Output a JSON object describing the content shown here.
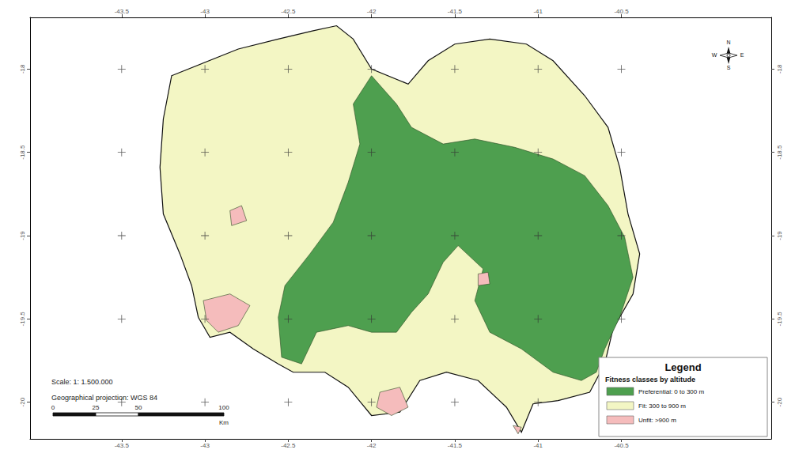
{
  "chart_data": {
    "type": "map",
    "xlim": [
      -44.05,
      -39.6
    ],
    "ylim": [
      -20.22,
      -17.69
    ],
    "xticks": [
      -43.5,
      -43,
      -42.5,
      -42,
      -41.5,
      -41,
      -40.5
    ],
    "yticks": [
      -20,
      -19.5,
      -19,
      -18.5,
      -18
    ],
    "grid": true,
    "legend": "lower right",
    "legend_title": "Legend",
    "legend_subtitle": "Fitness classes by altitude",
    "scale_text": "Scale: 1: 1.500.000",
    "projection_text": "Geographical projection: WGS 84",
    "scale_bar": {
      "ticks": [
        0,
        25,
        50,
        100
      ],
      "unit": "Km"
    },
    "compass": {
      "north": "N",
      "south": "S",
      "east": "E",
      "west": "W"
    },
    "series": [
      {
        "name": "Preferential: 0 to 300 m",
        "color": "#4e9f4f",
        "polygons": [
          [
            [
              -42.0,
              -18.04
            ],
            [
              -41.85,
              -18.21
            ],
            [
              -41.76,
              -18.35
            ],
            [
              -41.57,
              -18.45
            ],
            [
              -41.38,
              -18.42
            ],
            [
              -41.14,
              -18.47
            ],
            [
              -40.91,
              -18.54
            ],
            [
              -40.72,
              -18.64
            ],
            [
              -40.58,
              -18.82
            ],
            [
              -40.48,
              -19.01
            ],
            [
              -40.43,
              -19.25
            ],
            [
              -40.51,
              -19.49
            ],
            [
              -40.6,
              -19.68
            ],
            [
              -40.65,
              -19.82
            ],
            [
              -40.74,
              -19.87
            ],
            [
              -40.91,
              -19.82
            ],
            [
              -41.1,
              -19.68
            ],
            [
              -41.29,
              -19.58
            ],
            [
              -41.38,
              -19.39
            ],
            [
              -41.33,
              -19.2
            ],
            [
              -41.48,
              -19.06
            ],
            [
              -41.57,
              -19.16
            ],
            [
              -41.66,
              -19.35
            ],
            [
              -41.76,
              -19.46
            ],
            [
              -41.85,
              -19.58
            ],
            [
              -42.0,
              -19.58
            ],
            [
              -42.14,
              -19.54
            ],
            [
              -42.33,
              -19.58
            ],
            [
              -42.42,
              -19.77
            ],
            [
              -42.54,
              -19.73
            ],
            [
              -42.56,
              -19.49
            ],
            [
              -42.52,
              -19.3
            ],
            [
              -42.37,
              -19.11
            ],
            [
              -42.23,
              -18.92
            ],
            [
              -42.14,
              -18.68
            ],
            [
              -42.07,
              -18.45
            ],
            [
              -42.11,
              -18.21
            ]
          ]
        ]
      },
      {
        "name": "Fit: 300 to 900 m",
        "color": "#f3f6c4",
        "polygons": [
          [
            [
              -43.2,
              -18.04
            ],
            [
              -42.8,
              -17.88
            ],
            [
              -42.56,
              -17.82
            ],
            [
              -42.35,
              -17.77
            ],
            [
              -42.21,
              -17.74
            ],
            [
              -42.11,
              -17.82
            ],
            [
              -42.0,
              -18.0
            ],
            [
              -41.78,
              -18.09
            ],
            [
              -41.66,
              -17.95
            ],
            [
              -41.5,
              -17.85
            ],
            [
              -41.29,
              -17.82
            ],
            [
              -41.07,
              -17.85
            ],
            [
              -40.91,
              -17.95
            ],
            [
              -40.72,
              -18.16
            ],
            [
              -40.58,
              -18.35
            ],
            [
              -40.51,
              -18.59
            ],
            [
              -40.46,
              -18.87
            ],
            [
              -40.39,
              -19.11
            ],
            [
              -40.43,
              -19.35
            ],
            [
              -40.55,
              -19.56
            ],
            [
              -40.6,
              -19.77
            ],
            [
              -40.69,
              -19.94
            ],
            [
              -40.88,
              -19.99
            ],
            [
              -41.03,
              -20.01
            ],
            [
              -41.1,
              -20.18
            ],
            [
              -41.19,
              -20.03
            ],
            [
              -41.36,
              -19.87
            ],
            [
              -41.55,
              -19.82
            ],
            [
              -41.71,
              -19.87
            ],
            [
              -41.83,
              -20.06
            ],
            [
              -42.0,
              -20.08
            ],
            [
              -42.14,
              -19.91
            ],
            [
              -42.28,
              -19.82
            ],
            [
              -42.47,
              -19.82
            ],
            [
              -42.56,
              -19.77
            ],
            [
              -42.71,
              -19.68
            ],
            [
              -42.85,
              -19.58
            ],
            [
              -42.97,
              -19.61
            ],
            [
              -43.04,
              -19.49
            ],
            [
              -43.08,
              -19.3
            ],
            [
              -43.15,
              -19.11
            ],
            [
              -43.25,
              -18.87
            ],
            [
              -43.27,
              -18.59
            ],
            [
              -43.25,
              -18.3
            ]
          ]
        ]
      },
      {
        "name": "Unfit: >900 m",
        "color": "#f5bcbc",
        "polygons": [
          [
            [
              -43.01,
              -19.39
            ],
            [
              -42.85,
              -19.35
            ],
            [
              -42.73,
              -19.42
            ],
            [
              -42.8,
              -19.54
            ],
            [
              -42.92,
              -19.58
            ],
            [
              -42.99,
              -19.51
            ]
          ],
          [
            [
              -41.95,
              -19.94
            ],
            [
              -41.83,
              -19.91
            ],
            [
              -41.78,
              -20.03
            ],
            [
              -41.88,
              -20.08
            ],
            [
              -41.97,
              -20.03
            ]
          ],
          [
            [
              -42.85,
              -18.85
            ],
            [
              -42.78,
              -18.82
            ],
            [
              -42.75,
              -18.91
            ],
            [
              -42.84,
              -18.94
            ]
          ],
          [
            [
              -41.36,
              -19.23
            ],
            [
              -41.3,
              -19.22
            ],
            [
              -41.29,
              -19.29
            ],
            [
              -41.36,
              -19.3
            ]
          ],
          [
            [
              -41.15,
              -20.14
            ],
            [
              -41.1,
              -20.15
            ],
            [
              -41.12,
              -20.19
            ]
          ]
        ]
      }
    ]
  }
}
